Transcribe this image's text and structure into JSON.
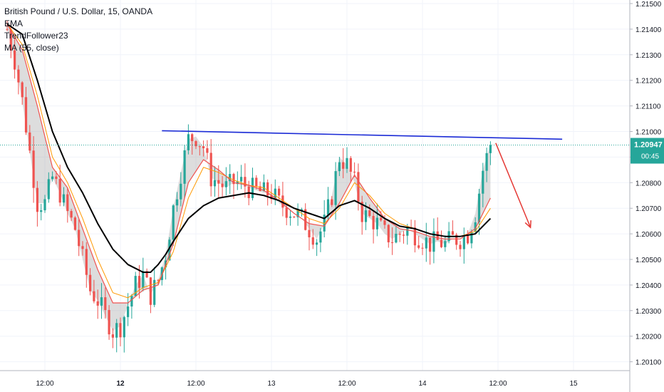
{
  "legend": {
    "title": "British Pound / U.S. Dollar, 15, OANDA",
    "ema": "EMA",
    "trend": "TrendFollower23",
    "ma": "MA (55, close)"
  },
  "colors": {
    "up": "#26a69a",
    "down": "#ef5350",
    "ema_fast": "#ef5350",
    "ema_slow": "#ff9800",
    "ma": "#000000",
    "trendline": "#1b2bd6",
    "arrow": "#e53935",
    "price_line": "#26a69a",
    "fill": "#9e9e9e"
  },
  "chart_data": {
    "type": "line",
    "title": "British Pound / U.S. Dollar, 15, OANDA",
    "xlabel": "",
    "ylabel": "",
    "ylim": [
      1.201,
      1.215
    ],
    "xlim": [
      0,
      100
    ],
    "grid": true,
    "yticks": [
      "1.21500",
      "1.21400",
      "1.21300",
      "1.21200",
      "1.21100",
      "1.21000",
      "1.20900",
      "1.20800",
      "1.20700",
      "1.20600",
      "1.20500",
      "1.20400",
      "1.20300",
      "1.20200",
      "1.20100"
    ],
    "xticks": [
      {
        "x": 5,
        "label": "12:00"
      },
      {
        "x": 15,
        "label": "12",
        "bold": true
      },
      {
        "x": 25,
        "label": "12:00"
      },
      {
        "x": 35,
        "label": "13"
      },
      {
        "x": 45,
        "label": "12:00"
      },
      {
        "x": 55,
        "label": "14"
      },
      {
        "x": 65,
        "label": "12:00"
      },
      {
        "x": 75,
        "label": "15"
      }
    ],
    "current_price": {
      "value": 1.20947,
      "label": "1.20947",
      "countdown": "00:45"
    },
    "price_series": {
      "name": "Price",
      "x": [
        0,
        1,
        2,
        3,
        4,
        5,
        6,
        7,
        8,
        9,
        10,
        11,
        12,
        13,
        14,
        15,
        16,
        17,
        18,
        19,
        20,
        21,
        22,
        23,
        24,
        25,
        26,
        27,
        28,
        29,
        30,
        31,
        32,
        33,
        34,
        35,
        36,
        37,
        38,
        39,
        40,
        41,
        42,
        43,
        44,
        45,
        46,
        47,
        48,
        49,
        50,
        51,
        52,
        53,
        54,
        55,
        56,
        57,
        58,
        59,
        60,
        61,
        62,
        63,
        64
      ],
      "y": [
        1.214,
        1.2128,
        1.2112,
        1.2092,
        1.2072,
        1.2072,
        1.2082,
        1.2076,
        1.2068,
        1.2062,
        1.205,
        1.2038,
        1.2034,
        1.2028,
        1.2022,
        1.2024,
        1.2032,
        1.204,
        1.2044,
        1.2036,
        1.2042,
        1.2052,
        1.207,
        1.2084,
        1.2097,
        1.2098,
        1.2094,
        1.2082,
        1.208,
        1.2078,
        1.208,
        1.208,
        1.2078,
        1.2077,
        1.2076,
        1.2076,
        1.2072,
        1.207,
        1.2068,
        1.2066,
        1.2062,
        1.2058,
        1.2064,
        1.2075,
        1.209,
        1.2087,
        1.208,
        1.2068,
        1.2066,
        1.2064,
        1.206,
        1.2058,
        1.206,
        1.2062,
        1.206,
        1.2058,
        1.2056,
        1.2057,
        1.2056,
        1.2058,
        1.2058,
        1.206,
        1.2068,
        1.2085,
        1.2095
      ]
    },
    "series": [
      {
        "name": "EMA fast",
        "x": [
          0,
          2,
          4,
          6,
          8,
          10,
          12,
          14,
          16,
          18,
          20,
          22,
          24,
          26,
          28,
          30,
          32,
          34,
          36,
          38,
          40,
          42,
          44,
          46,
          48,
          50,
          52,
          54,
          56,
          58,
          60,
          62,
          64
        ],
        "y": [
          1.2142,
          1.2132,
          1.211,
          1.2086,
          1.2078,
          1.2062,
          1.2046,
          1.2033,
          1.2033,
          1.2038,
          1.204,
          1.2056,
          1.208,
          1.2089,
          1.2085,
          1.208,
          1.2079,
          1.2077,
          1.2073,
          1.2068,
          1.2064,
          1.2063,
          1.2072,
          1.2083,
          1.2074,
          1.2066,
          1.2062,
          1.2061,
          1.2059,
          1.2058,
          1.2058,
          1.2062,
          1.2074
        ]
      },
      {
        "name": "EMA slow",
        "x": [
          0,
          2,
          4,
          6,
          8,
          10,
          12,
          14,
          16,
          18,
          20,
          22,
          24,
          26,
          28,
          30,
          32,
          34,
          36,
          38,
          40,
          42,
          44,
          46,
          48,
          50,
          52,
          54,
          56,
          58,
          60,
          62,
          64
        ],
        "y": [
          1.2142,
          1.2134,
          1.2114,
          1.209,
          1.208,
          1.2066,
          1.205,
          1.2037,
          1.2035,
          1.2039,
          1.2041,
          1.2053,
          1.2074,
          1.2086,
          1.2084,
          1.2081,
          1.2079,
          1.2078,
          1.2074,
          1.207,
          1.2066,
          1.2064,
          1.207,
          1.208,
          1.2075,
          1.2068,
          1.2064,
          1.2062,
          1.206,
          1.2059,
          1.2059,
          1.2061,
          1.207
        ]
      },
      {
        "name": "MA (55, close)",
        "x": [
          0,
          2,
          4,
          6,
          8,
          10,
          12,
          14,
          16,
          18,
          19,
          20,
          21,
          22,
          24,
          26,
          28,
          30,
          32,
          34,
          36,
          38,
          40,
          42,
          44,
          46,
          48,
          50,
          52,
          54,
          56,
          58,
          60,
          62,
          64
        ],
        "y": [
          1.2142,
          1.2138,
          1.212,
          1.21,
          1.2086,
          1.2076,
          1.2064,
          1.2054,
          1.2048,
          1.2045,
          1.2045,
          1.2048,
          1.2052,
          1.2057,
          1.2066,
          1.2071,
          1.2074,
          1.2075,
          1.2076,
          1.2075,
          1.2073,
          1.207,
          1.2068,
          1.2066,
          1.2071,
          1.2073,
          1.207,
          1.2066,
          1.2063,
          1.2062,
          1.206,
          1.2059,
          1.2059,
          1.206,
          1.2066
        ]
      }
    ],
    "trendline": {
      "x": [
        20.5,
        73.5
      ],
      "y": [
        1.21003,
        1.2097
      ]
    },
    "arrow": {
      "x": [
        64.7,
        69.3
      ],
      "y": [
        1.20955,
        1.20625
      ]
    }
  }
}
